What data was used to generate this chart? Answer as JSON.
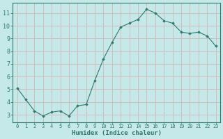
{
  "x": [
    0,
    1,
    2,
    3,
    4,
    5,
    6,
    7,
    8,
    9,
    10,
    11,
    12,
    13,
    14,
    15,
    16,
    17,
    18,
    19,
    20,
    21,
    22,
    23
  ],
  "y": [
    5.1,
    4.2,
    3.3,
    2.9,
    3.2,
    3.3,
    2.9,
    3.7,
    3.8,
    5.7,
    7.4,
    8.7,
    9.9,
    10.2,
    10.5,
    11.3,
    11.0,
    10.4,
    10.2,
    9.5,
    9.4,
    9.5,
    9.2,
    8.4
  ],
  "xlabel": "Humidex (Indice chaleur)",
  "xlim": [
    -0.5,
    23.5
  ],
  "ylim": [
    2.4,
    11.8
  ],
  "yticks": [
    3,
    4,
    5,
    6,
    7,
    8,
    9,
    10,
    11
  ],
  "xticks": [
    0,
    1,
    2,
    3,
    4,
    5,
    6,
    7,
    8,
    9,
    10,
    11,
    12,
    13,
    14,
    15,
    16,
    17,
    18,
    19,
    20,
    21,
    22,
    23
  ],
  "xtick_labels": [
    "0",
    "1",
    "2",
    "3",
    "4",
    "5",
    "6",
    "7",
    "8",
    "9",
    "10",
    "11",
    "12",
    "13",
    "14",
    "15",
    "16",
    "17",
    "18",
    "19",
    "20",
    "21",
    "22",
    "23"
  ],
  "line_color": "#2d7a6e",
  "marker_color": "#2d7a6e",
  "bg_color": "#c5e8e8",
  "grid_color": "#d4b8b8",
  "axes_color": "#2d7a6e",
  "xlabel_color": "#2d7a6e",
  "tick_label_color": "#2d7a6e"
}
